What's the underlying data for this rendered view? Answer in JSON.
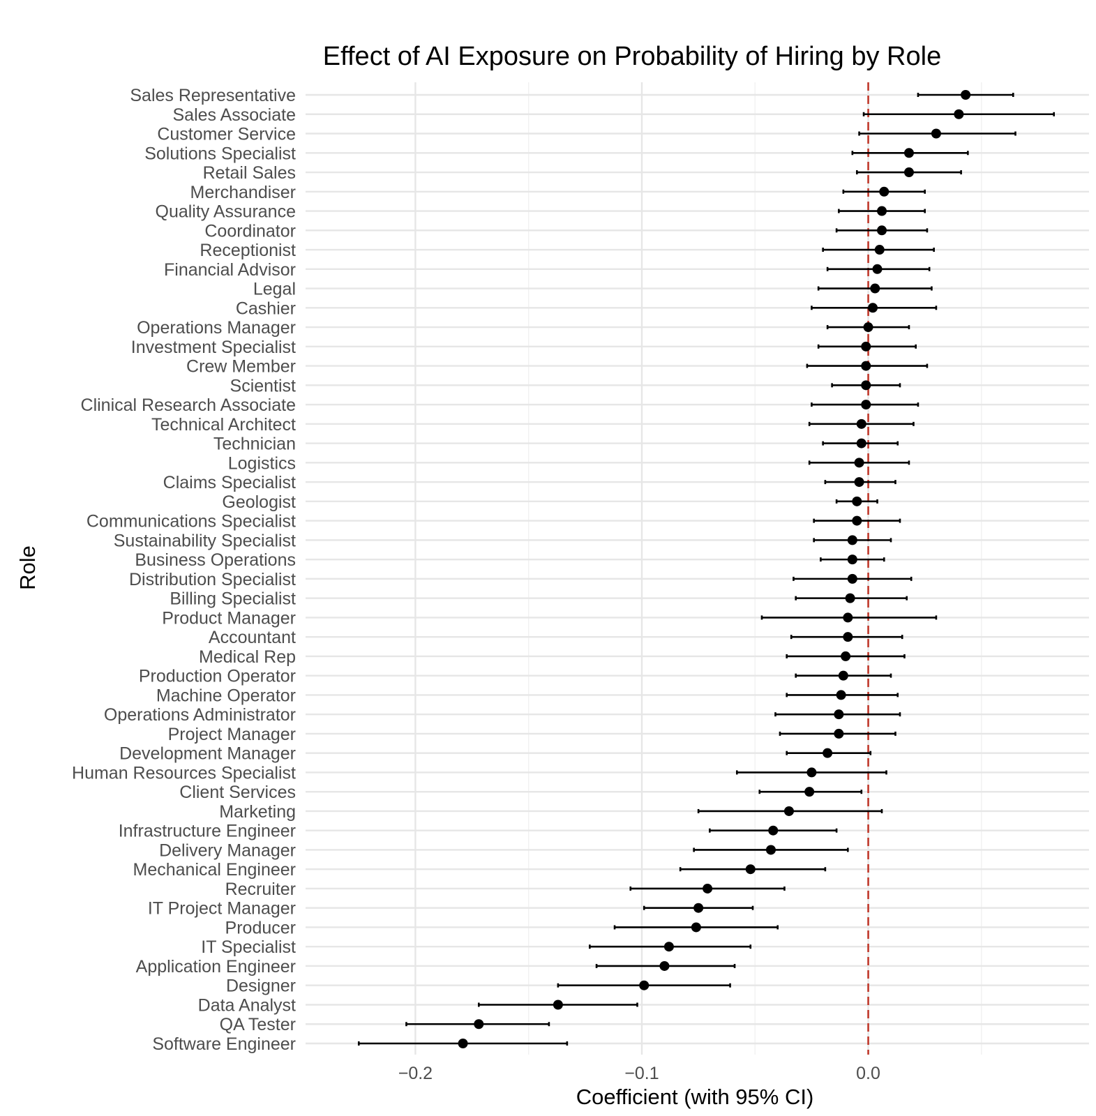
{
  "chart_data": {
    "type": "forest",
    "title": "Effect of AI Exposure on Probability of Hiring by Role",
    "xlabel": "Coefficient (with 95% CI)",
    "ylabel": "Role",
    "xlim": [
      -0.2485,
      0.0975
    ],
    "x_ticks": [
      -0.2,
      -0.1,
      0.0
    ],
    "x_tick_labels": [
      "−0.2",
      "−0.1",
      "0.0"
    ],
    "x_minor_ticks": [
      -0.15,
      -0.05,
      0.05
    ],
    "reference_line": 0.0,
    "reference_line_color": "#c0392b",
    "point_color": "#000000",
    "grid": true,
    "roles": [
      {
        "role": "Sales Representative",
        "estimate": 0.043,
        "lower": 0.022,
        "upper": 0.064
      },
      {
        "role": "Sales Associate",
        "estimate": 0.04,
        "lower": -0.002,
        "upper": 0.082
      },
      {
        "role": "Customer Service",
        "estimate": 0.03,
        "lower": -0.004,
        "upper": 0.065
      },
      {
        "role": "Solutions Specialist",
        "estimate": 0.018,
        "lower": -0.007,
        "upper": 0.044
      },
      {
        "role": "Retail Sales",
        "estimate": 0.018,
        "lower": -0.005,
        "upper": 0.041
      },
      {
        "role": "Merchandiser",
        "estimate": 0.007,
        "lower": -0.011,
        "upper": 0.025
      },
      {
        "role": "Quality Assurance",
        "estimate": 0.006,
        "lower": -0.013,
        "upper": 0.025
      },
      {
        "role": "Coordinator",
        "estimate": 0.006,
        "lower": -0.014,
        "upper": 0.026
      },
      {
        "role": "Receptionist",
        "estimate": 0.005,
        "lower": -0.02,
        "upper": 0.029
      },
      {
        "role": "Financial Advisor",
        "estimate": 0.004,
        "lower": -0.018,
        "upper": 0.027
      },
      {
        "role": "Legal",
        "estimate": 0.003,
        "lower": -0.022,
        "upper": 0.028
      },
      {
        "role": "Cashier",
        "estimate": 0.002,
        "lower": -0.025,
        "upper": 0.03
      },
      {
        "role": "Operations Manager",
        "estimate": 0.0,
        "lower": -0.018,
        "upper": 0.018
      },
      {
        "role": "Investment Specialist",
        "estimate": -0.001,
        "lower": -0.022,
        "upper": 0.021
      },
      {
        "role": "Crew Member",
        "estimate": -0.001,
        "lower": -0.027,
        "upper": 0.026
      },
      {
        "role": "Scientist",
        "estimate": -0.001,
        "lower": -0.016,
        "upper": 0.014
      },
      {
        "role": "Clinical Research Associate",
        "estimate": -0.001,
        "lower": -0.025,
        "upper": 0.022
      },
      {
        "role": "Technical Architect",
        "estimate": -0.003,
        "lower": -0.026,
        "upper": 0.02
      },
      {
        "role": "Technician",
        "estimate": -0.003,
        "lower": -0.02,
        "upper": 0.013
      },
      {
        "role": "Logistics",
        "estimate": -0.004,
        "lower": -0.026,
        "upper": 0.018
      },
      {
        "role": "Claims Specialist",
        "estimate": -0.004,
        "lower": -0.019,
        "upper": 0.012
      },
      {
        "role": "Geologist",
        "estimate": -0.005,
        "lower": -0.014,
        "upper": 0.004
      },
      {
        "role": "Communications Specialist",
        "estimate": -0.005,
        "lower": -0.024,
        "upper": 0.014
      },
      {
        "role": "Sustainability Specialist",
        "estimate": -0.007,
        "lower": -0.024,
        "upper": 0.01
      },
      {
        "role": "Business Operations",
        "estimate": -0.007,
        "lower": -0.021,
        "upper": 0.007
      },
      {
        "role": "Distribution Specialist",
        "estimate": -0.007,
        "lower": -0.033,
        "upper": 0.019
      },
      {
        "role": "Billing Specialist",
        "estimate": -0.008,
        "lower": -0.032,
        "upper": 0.017
      },
      {
        "role": "Product Manager",
        "estimate": -0.009,
        "lower": -0.047,
        "upper": 0.03
      },
      {
        "role": "Accountant",
        "estimate": -0.009,
        "lower": -0.034,
        "upper": 0.015
      },
      {
        "role": "Medical Rep",
        "estimate": -0.01,
        "lower": -0.036,
        "upper": 0.016
      },
      {
        "role": "Production Operator",
        "estimate": -0.011,
        "lower": -0.032,
        "upper": 0.01
      },
      {
        "role": "Machine Operator",
        "estimate": -0.012,
        "lower": -0.036,
        "upper": 0.013
      },
      {
        "role": "Operations Administrator",
        "estimate": -0.013,
        "lower": -0.041,
        "upper": 0.014
      },
      {
        "role": "Project Manager",
        "estimate": -0.013,
        "lower": -0.039,
        "upper": 0.012
      },
      {
        "role": "Development Manager",
        "estimate": -0.018,
        "lower": -0.036,
        "upper": 0.001
      },
      {
        "role": "Human Resources Specialist",
        "estimate": -0.025,
        "lower": -0.058,
        "upper": 0.008
      },
      {
        "role": "Client Services",
        "estimate": -0.026,
        "lower": -0.048,
        "upper": -0.003
      },
      {
        "role": "Marketing",
        "estimate": -0.035,
        "lower": -0.075,
        "upper": 0.006
      },
      {
        "role": "Infrastructure Engineer",
        "estimate": -0.042,
        "lower": -0.07,
        "upper": -0.014
      },
      {
        "role": "Delivery Manager",
        "estimate": -0.043,
        "lower": -0.077,
        "upper": -0.009
      },
      {
        "role": "Mechanical Engineer",
        "estimate": -0.052,
        "lower": -0.083,
        "upper": -0.019
      },
      {
        "role": "Recruiter",
        "estimate": -0.071,
        "lower": -0.105,
        "upper": -0.037
      },
      {
        "role": "IT Project Manager",
        "estimate": -0.075,
        "lower": -0.099,
        "upper": -0.051
      },
      {
        "role": "Producer",
        "estimate": -0.076,
        "lower": -0.112,
        "upper": -0.04
      },
      {
        "role": "IT Specialist",
        "estimate": -0.088,
        "lower": -0.123,
        "upper": -0.052
      },
      {
        "role": "Application Engineer",
        "estimate": -0.09,
        "lower": -0.12,
        "upper": -0.059
      },
      {
        "role": "Designer",
        "estimate": -0.099,
        "lower": -0.137,
        "upper": -0.061
      },
      {
        "role": "Data Analyst",
        "estimate": -0.137,
        "lower": -0.172,
        "upper": -0.102
      },
      {
        "role": "QA Tester",
        "estimate": -0.172,
        "lower": -0.204,
        "upper": -0.141
      },
      {
        "role": "Software Engineer",
        "estimate": -0.179,
        "lower": -0.225,
        "upper": -0.133
      }
    ]
  }
}
